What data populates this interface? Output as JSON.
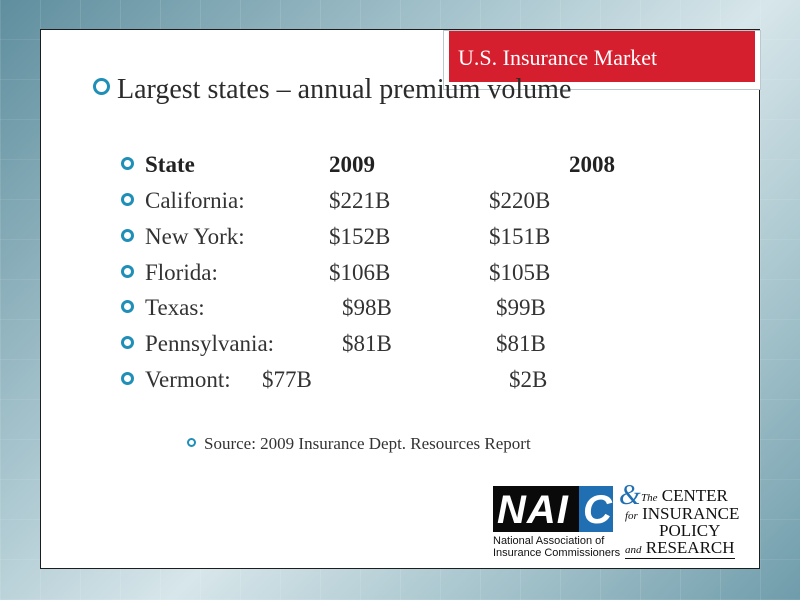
{
  "title": "U.S. Insurance Market",
  "heading": "Largest states – annual premium volume",
  "table": {
    "header": {
      "state": "State",
      "y2009": "2009",
      "y2008": "2008"
    },
    "rows": [
      {
        "state": "California:",
        "y2009": "$221B",
        "y2008": "$220B"
      },
      {
        "state": "New York:",
        "y2009": "$152B",
        "y2008": "$151B"
      },
      {
        "state": "Florida:",
        "y2009": "$106B",
        "y2008": "$105B"
      },
      {
        "state": "Texas:",
        "y2009": "$98B",
        "y2008": "$99B"
      },
      {
        "state": "Pennsylvania:",
        "y2009": "$81B",
        "y2008": "$81B"
      },
      {
        "state": "Vermont:",
        "y2009": "$77B",
        "y2008": "$2B"
      }
    ]
  },
  "source": "Source: 2009 Insurance Dept. Resources Report",
  "logos": {
    "naic_letters": "NAI",
    "naic_c": "C",
    "naic_caption_1": "National Association of",
    "naic_caption_2": "Insurance Commissioners",
    "cipr_amp": "&",
    "cipr_the": "The",
    "cipr_1": "CENTER",
    "cipr_for": "for",
    "cipr_2": "INSURANCE",
    "cipr_3": "POLICY",
    "cipr_and": "and",
    "cipr_4": "RESEARCH"
  },
  "colors": {
    "accent": "#d61f2e",
    "bullet": "#1f8fb8"
  }
}
